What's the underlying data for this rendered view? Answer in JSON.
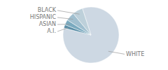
{
  "chart_data": {
    "type": "pie",
    "categories": [
      "WHITE",
      "A.I.",
      "ASIAN",
      "HISPANIC",
      "BLACK"
    ],
    "values": [
      84,
      2,
      3,
      5,
      6
    ],
    "colors": [
      "#cdd8e3",
      "#5b8fa8",
      "#7aaabf",
      "#a0bfcf",
      "#bdd0da"
    ]
  }
}
